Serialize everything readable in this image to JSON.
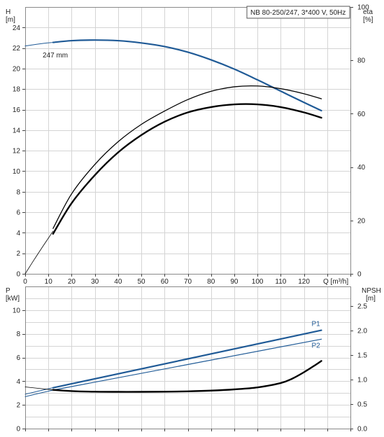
{
  "title": "NB 80-250/247, 3*400 V, 50Hz",
  "colors": {
    "blue": "#1f5a96",
    "black": "#000000",
    "grid": "#d4d4d4",
    "frame": "#888888"
  },
  "chart_data": [
    {
      "type": "line",
      "name": "top",
      "left_axis": {
        "label_line1": "H",
        "label_line2": "[m]",
        "range": [
          0,
          26
        ],
        "ticks": [
          "0",
          "2",
          "4",
          "6",
          "8",
          "10",
          "12",
          "14",
          "16",
          "18",
          "20",
          "22",
          "24"
        ]
      },
      "right_axis": {
        "label_line1": "eta",
        "label_line2": "[%]",
        "range": [
          0,
          100
        ],
        "ticks": [
          "0",
          "20",
          "40",
          "60",
          "80",
          "100"
        ]
      },
      "x_axis": {
        "label": "Q [m³/h]",
        "range": [
          0,
          140
        ],
        "ticks": [
          "0",
          "10",
          "20",
          "30",
          "40",
          "50",
          "60",
          "70",
          "80",
          "90",
          "100",
          "110",
          "120"
        ]
      },
      "annotation": "247 mm",
      "series": [
        {
          "kind": "H",
          "axis": "left",
          "color": "#1f5a96",
          "width": 2.2,
          "x": [
            12,
            20,
            30,
            40,
            50,
            60,
            70,
            80,
            90,
            100,
            110,
            120,
            127.5
          ],
          "y": [
            22.55,
            22.72,
            22.78,
            22.72,
            22.5,
            22.15,
            21.6,
            20.85,
            19.95,
            18.9,
            17.8,
            16.7,
            15.9
          ]
        },
        {
          "kind": "H-extension",
          "axis": "left",
          "color": "#1f5a96",
          "width": 1.0,
          "x": [
            0,
            6,
            12
          ],
          "y": [
            22.2,
            22.4,
            22.55
          ]
        },
        {
          "kind": "eta-thin",
          "axis": "right",
          "color": "#000000",
          "width": 1.3,
          "x": [
            12,
            20,
            30,
            40,
            50,
            60,
            70,
            80,
            90,
            100,
            110,
            120,
            127.5
          ],
          "y": [
            17,
            30,
            41,
            49.5,
            56,
            61,
            65.3,
            68.4,
            70.1,
            70.4,
            69.4,
            67.5,
            65.6
          ]
        },
        {
          "kind": "eta-thick",
          "axis": "right",
          "color": "#000000",
          "width": 2.4,
          "x": [
            12,
            20,
            30,
            40,
            50,
            60,
            70,
            80,
            90,
            100,
            110,
            120,
            127.5
          ],
          "y": [
            15,
            26.5,
            37,
            45.5,
            52,
            57,
            60.5,
            62.5,
            63.5,
            63.5,
            62.5,
            60.5,
            58.5
          ]
        },
        {
          "kind": "eta-origin",
          "axis": "right",
          "color": "#000000",
          "width": 0.8,
          "x": [
            0,
            4,
            8,
            12
          ],
          "y": [
            0,
            5.5,
            10.8,
            16
          ]
        }
      ]
    },
    {
      "type": "line",
      "name": "bottom",
      "left_axis": {
        "label_line1": "P",
        "label_line2": "[kW]",
        "range": [
          0,
          12
        ],
        "ticks": [
          "0",
          "2",
          "4",
          "6",
          "8",
          "10"
        ]
      },
      "right_axis": {
        "label_line1": "NPSH",
        "label_line2": "[m]",
        "range": [
          0,
          2.9
        ],
        "ticks": [
          "0.0",
          "0.5",
          "1.0",
          "1.5",
          "2.0",
          "2.5"
        ]
      },
      "x_axis": {
        "range": [
          0,
          140
        ]
      },
      "series": [
        {
          "name": "P1",
          "axis": "left",
          "color": "#1f5a96",
          "width": 2.2,
          "x": [
            12,
            127.5
          ],
          "y": [
            3.45,
            8.3
          ]
        },
        {
          "name": "P2",
          "axis": "left",
          "color": "#1f5a96",
          "width": 1.2,
          "x": [
            12,
            127.5
          ],
          "y": [
            3.25,
            7.55
          ]
        },
        {
          "kind": "P1-extension",
          "axis": "left",
          "color": "#1f5a96",
          "width": 1.0,
          "x": [
            0,
            12
          ],
          "y": [
            2.9,
            3.45
          ]
        },
        {
          "kind": "P2-extension",
          "axis": "left",
          "color": "#1f5a96",
          "width": 1.0,
          "x": [
            0,
            12
          ],
          "y": [
            2.7,
            3.25
          ]
        },
        {
          "kind": "NPSH",
          "axis": "right",
          "color": "#000000",
          "width": 2.4,
          "x": [
            12,
            20,
            30,
            40,
            50,
            60,
            70,
            80,
            90,
            100,
            110,
            115,
            120,
            125,
            127.5
          ],
          "y": [
            0.79,
            0.765,
            0.752,
            0.75,
            0.75,
            0.752,
            0.76,
            0.775,
            0.8,
            0.84,
            0.93,
            1.02,
            1.15,
            1.3,
            1.38
          ]
        },
        {
          "kind": "NPSH-extension",
          "axis": "right",
          "color": "#000000",
          "width": 0.8,
          "x": [
            0,
            12
          ],
          "y": [
            0.85,
            0.79
          ]
        }
      ]
    }
  ]
}
